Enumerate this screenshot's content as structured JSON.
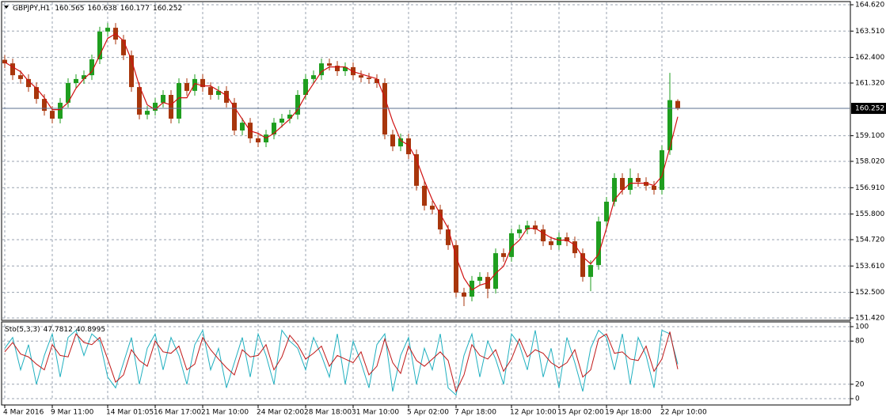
{
  "chart_data": [
    {
      "type": "candlestick",
      "title": "GBPJPY,H1",
      "categories": [
        "4 Mar 2016",
        null,
        null,
        null,
        null,
        null,
        "9 Mar 11:00",
        null,
        null,
        null,
        null,
        null,
        null,
        "14 Mar 01:05",
        null,
        null,
        null,
        null,
        null,
        "16 Mar 17:00",
        null,
        null,
        null,
        null,
        null,
        "21 Mar 10:00",
        null,
        null,
        null,
        null,
        null,
        null,
        "24 Mar 02:00",
        null,
        null,
        null,
        null,
        null,
        "28 Mar 18:00",
        null,
        null,
        null,
        null,
        null,
        "31 Mar 10:00",
        null,
        null,
        null,
        null,
        null,
        null,
        "5 Apr 02:00",
        null,
        null,
        null,
        null,
        null,
        "7 Apr 18:00",
        null,
        null,
        null,
        null,
        null,
        null,
        "12 Apr 10:00",
        null,
        null,
        null,
        null,
        null,
        "15 Apr 02:00",
        null,
        null,
        null,
        null,
        null,
        "19 Apr 18:00",
        null,
        null,
        null,
        null,
        null,
        null,
        "22 Apr 10:00",
        null,
        null
      ],
      "open": [
        162.3,
        162.15,
        161.65,
        161.49,
        161.15,
        160.65,
        160.15,
        159.82,
        160.49,
        161.32,
        161.49,
        161.65,
        162.32,
        163.49,
        163.65,
        163.15,
        162.49,
        161.15,
        159.99,
        160.15,
        160.49,
        160.82,
        159.82,
        161.32,
        160.99,
        161.49,
        161.15,
        160.82,
        160.99,
        160.49,
        159.32,
        159.65,
        158.99,
        158.82,
        159.15,
        159.65,
        159.82,
        159.99,
        160.82,
        161.49,
        161.65,
        162.15,
        162.05,
        161.82,
        161.99,
        161.65,
        161.55,
        161.49,
        161.32,
        159.15,
        158.65,
        158.99,
        158.32,
        156.99,
        156.15,
        155.99,
        155.15,
        154.49,
        152.49,
        152.32,
        152.99,
        153.15,
        152.65,
        154.15,
        153.99,
        154.99,
        155.15,
        155.32,
        155.15,
        154.65,
        154.49,
        154.82,
        154.65,
        154.15,
        153.15,
        153.65,
        155.49,
        156.32,
        157.32,
        156.82,
        157.32,
        157.15,
        156.99,
        156.82,
        158.49,
        160.565
      ],
      "high": [
        162.5,
        162.35,
        161.85,
        161.69,
        161.35,
        160.85,
        160.35,
        160.69,
        161.52,
        161.69,
        161.85,
        162.52,
        163.69,
        163.85,
        163.85,
        163.35,
        162.69,
        161.35,
        160.35,
        160.69,
        161.02,
        161.02,
        161.52,
        161.52,
        161.69,
        161.69,
        161.35,
        161.19,
        161.19,
        160.69,
        159.85,
        159.85,
        159.19,
        159.35,
        159.85,
        160.02,
        160.19,
        161.02,
        161.69,
        161.85,
        162.35,
        162.35,
        162.25,
        162.19,
        162.19,
        161.85,
        161.75,
        161.69,
        161.52,
        159.35,
        159.19,
        159.19,
        158.52,
        157.19,
        156.35,
        156.19,
        155.35,
        154.69,
        152.69,
        153.19,
        153.35,
        153.35,
        154.35,
        154.35,
        155.19,
        155.35,
        155.52,
        155.52,
        155.35,
        154.85,
        155.02,
        155.02,
        154.85,
        154.35,
        153.85,
        155.69,
        156.52,
        157.52,
        157.52,
        157.72,
        157.52,
        157.35,
        157.19,
        158.69,
        161.75,
        160.638
      ],
      "low": [
        161.95,
        161.45,
        161.29,
        160.95,
        160.45,
        159.95,
        159.62,
        159.62,
        160.29,
        161.12,
        161.29,
        161.45,
        162.12,
        163.29,
        162.95,
        162.29,
        160.95,
        159.79,
        159.79,
        159.95,
        160.29,
        159.62,
        159.62,
        160.79,
        160.79,
        160.95,
        160.62,
        160.62,
        160.29,
        159.12,
        159.12,
        158.79,
        158.62,
        158.62,
        158.95,
        159.45,
        159.62,
        159.79,
        160.62,
        161.29,
        161.45,
        161.85,
        161.62,
        161.62,
        161.45,
        161.35,
        161.29,
        161.12,
        158.95,
        158.45,
        158.45,
        158.12,
        156.79,
        155.95,
        155.79,
        154.95,
        154.29,
        152.29,
        151.92,
        152.12,
        152.79,
        152.25,
        152.45,
        153.79,
        153.79,
        154.79,
        154.95,
        154.95,
        154.45,
        154.29,
        154.29,
        154.45,
        153.95,
        152.95,
        152.55,
        153.45,
        155.29,
        156.12,
        156.62,
        156.62,
        156.95,
        156.79,
        156.62,
        156.62,
        158.29,
        160.177
      ],
      "close": [
        162.15,
        161.65,
        161.49,
        161.15,
        160.65,
        160.15,
        159.82,
        160.49,
        161.32,
        161.49,
        161.65,
        162.32,
        163.49,
        163.65,
        163.15,
        162.49,
        161.15,
        159.99,
        160.15,
        160.49,
        160.82,
        159.82,
        161.32,
        160.99,
        161.49,
        161.15,
        160.82,
        160.99,
        160.49,
        159.32,
        159.65,
        158.99,
        158.82,
        159.15,
        159.65,
        159.82,
        159.99,
        160.82,
        161.49,
        161.65,
        162.15,
        162.05,
        161.82,
        161.99,
        161.65,
        161.55,
        161.49,
        161.32,
        159.15,
        158.65,
        158.99,
        158.32,
        156.99,
        156.15,
        155.99,
        155.15,
        154.49,
        152.49,
        152.32,
        152.99,
        153.15,
        152.65,
        154.15,
        153.99,
        154.99,
        155.15,
        155.32,
        155.15,
        154.65,
        154.49,
        154.82,
        154.65,
        154.15,
        153.15,
        153.65,
        155.49,
        156.32,
        157.32,
        156.82,
        157.32,
        157.15,
        156.99,
        156.82,
        158.49,
        160.6,
        160.252
      ],
      "ma": {
        "color": "#d01010",
        "values": [
          162.2,
          162.0,
          161.8,
          161.4,
          161.1,
          160.7,
          160.2,
          160.2,
          160.5,
          161.1,
          161.5,
          161.8,
          162.5,
          163.2,
          163.4,
          163.1,
          162.3,
          161.2,
          160.4,
          160.2,
          160.5,
          160.4,
          160.7,
          160.7,
          161.3,
          161.2,
          161.2,
          161.0,
          160.8,
          160.3,
          159.8,
          159.3,
          159.2,
          159.0,
          159.2,
          159.5,
          159.8,
          160.2,
          160.8,
          161.3,
          161.8,
          162.0,
          162.0,
          162.0,
          161.8,
          161.7,
          161.6,
          161.5,
          160.7,
          159.7,
          158.9,
          158.7,
          158.1,
          157.2,
          156.4,
          155.8,
          155.2,
          154.0,
          153.1,
          152.6,
          152.8,
          152.9,
          153.3,
          153.6,
          154.4,
          154.7,
          155.2,
          155.2,
          155.0,
          154.8,
          154.7,
          154.7,
          154.5,
          154.0,
          153.7,
          154.1,
          155.2,
          156.4,
          156.8,
          157.1,
          157.1,
          157.1,
          157.0,
          157.4,
          158.6,
          159.9
        ]
      },
      "up_color": "#1f9e1f",
      "down_color": "#a8360c",
      "ylim": [
        151.42,
        164.62
      ],
      "yticks": [
        {
          "value": 151.42,
          "label": "151.420"
        },
        {
          "value": 152.5,
          "label": "152.500"
        },
        {
          "value": 153.61,
          "label": "153.610"
        },
        {
          "value": 154.72,
          "label": "154.720"
        },
        {
          "value": 155.8,
          "label": "155.800"
        },
        {
          "value": 156.91,
          "label": "156.910"
        },
        {
          "value": 158.02,
          "label": "158.020"
        },
        {
          "value": 159.1,
          "label": "159.100"
        },
        {
          "value": 161.32,
          "label": "161.320"
        },
        {
          "value": 162.4,
          "label": "162.400"
        },
        {
          "value": 163.51,
          "label": "163.510"
        },
        {
          "value": 164.62,
          "label": "164.620"
        }
      ],
      "grid": true
    },
    {
      "type": "line",
      "title": "Sto(5,3,3)",
      "series": [
        {
          "color": "#20b0c0",
          "values": [
            70,
            85,
            40,
            75,
            20,
            60,
            90,
            30,
            85,
            95,
            60,
            90,
            80,
            30,
            15,
            50,
            85,
            20,
            70,
            90,
            40,
            85,
            60,
            20,
            75,
            95,
            40,
            70,
            15,
            50,
            85,
            30,
            90,
            60,
            20,
            95,
            80,
            70,
            40,
            85,
            60,
            30,
            90,
            20,
            80,
            50,
            15,
            75,
            90,
            10,
            60,
            85,
            20,
            70,
            40,
            90,
            15,
            5,
            60,
            90,
            30,
            80,
            55,
            20,
            90,
            75,
            40,
            95,
            30,
            70,
            15,
            85,
            50,
            10,
            70,
            95,
            85,
            40,
            90,
            20,
            85,
            60,
            15,
            95,
            90,
            47.7812
          ]
        },
        {
          "color": "#c01818",
          "values": [
            65,
            78,
            62,
            58,
            48,
            40,
            75,
            60,
            58,
            90,
            78,
            75,
            85,
            55,
            23,
            33,
            68,
            53,
            45,
            80,
            65,
            63,
            73,
            40,
            48,
            85,
            68,
            55,
            43,
            33,
            68,
            58,
            60,
            75,
            40,
            58,
            88,
            75,
            55,
            63,
            73,
            45,
            60,
            55,
            50,
            65,
            33,
            45,
            83,
            50,
            35,
            73,
            53,
            45,
            55,
            65,
            53,
            10,
            33,
            75,
            60,
            55,
            68,
            38,
            55,
            83,
            58,
            68,
            63,
            50,
            43,
            50,
            68,
            30,
            40,
            83,
            90,
            63,
            65,
            55,
            53,
            73,
            38,
            55,
            93,
            40.8995
          ]
        }
      ],
      "ylim": [
        0,
        100
      ],
      "yticks": [
        0,
        20,
        80,
        100
      ],
      "grid": true
    }
  ]
}
